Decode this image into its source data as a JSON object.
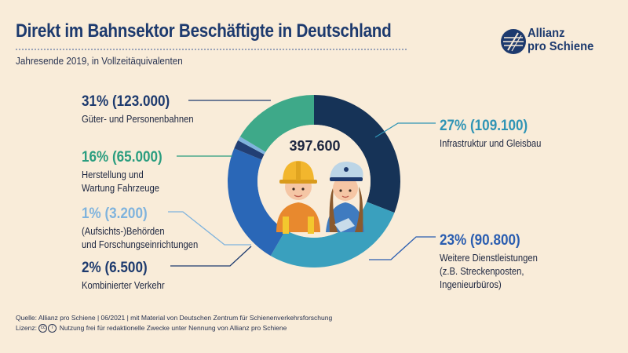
{
  "title": "Direkt im Bahnsektor Beschäftigte in Deutschland",
  "subtitle": "Jahresende 2019, in Vollzeitäquivalenten",
  "logo": {
    "line1": "Allianz",
    "line2": "pro Schiene"
  },
  "total": "397.600",
  "footer": {
    "source": "Quelle: Allianz pro Schiene | 06/2021 | mit Material von Deutschen Zentrum für Schienenverkehrsforschung",
    "license_prefix": "Lizenz:",
    "license_text": "Nutzung frei für redaktionelle Zwecke unter Nennung von Allianz pro Schiene"
  },
  "labels": [
    {
      "pct": "31% (123.000)",
      "desc1": "Güter- und Personenbahnen",
      "desc2": "",
      "color": "#1d3a6e"
    },
    {
      "pct": "27% (109.100)",
      "desc1": "Infrastruktur und Gleisbau",
      "desc2": "",
      "color": "#2f94b5"
    },
    {
      "pct": "23% (90.800)",
      "desc1": "Weitere Dienstleistungen",
      "desc2": "(z.B. Streckenposten,",
      "desc3": "Ingenieurbüros)",
      "color": "#2a5db0"
    },
    {
      "pct": "2% (6.500)",
      "desc1": "Kombinierter Verkehr",
      "desc2": "",
      "color": "#1d3a6e"
    },
    {
      "pct": "1% (3.200)",
      "desc1": "(Aufsichts-)Behörden",
      "desc2": "und Forschungseinrichtungen",
      "color": "#7fb3dd"
    },
    {
      "pct": "16% (65.000)",
      "desc1": "Herstellung und",
      "desc2": "Wartung Fahrzeuge",
      "color": "#2a9d7f"
    }
  ],
  "chart_data": {
    "type": "pie",
    "total": 397600,
    "segments": [
      {
        "name": "Güter- und Personenbahnen",
        "value": 123000,
        "percent": 31,
        "color": "#163357"
      },
      {
        "name": "Infrastruktur und Gleisbau",
        "value": 109100,
        "percent": 27,
        "color": "#3aa0be"
      },
      {
        "name": "Weitere Dienstleistungen",
        "value": 90800,
        "percent": 23,
        "color": "#2a67b7"
      },
      {
        "name": "Kombinierter Verkehr",
        "value": 6500,
        "percent": 2,
        "color": "#223f74"
      },
      {
        "name": "(Aufsichts-)Behörden und Forschungseinrichtungen",
        "value": 3200,
        "percent": 1,
        "color": "#7fb3dd"
      },
      {
        "name": "Herstellung und Wartung Fahrzeuge",
        "value": 65000,
        "percent": 16,
        "color": "#3ea989"
      }
    ]
  }
}
